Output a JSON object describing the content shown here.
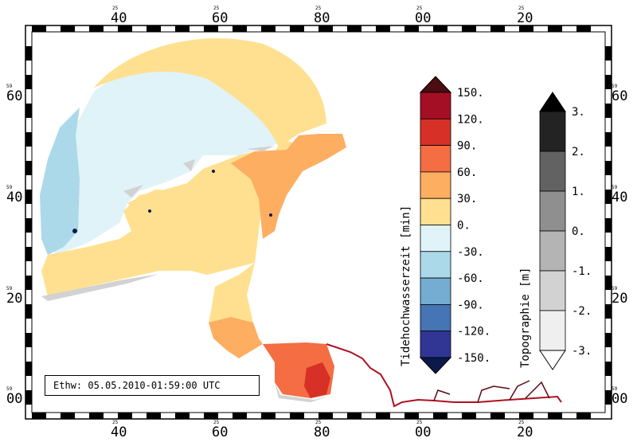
{
  "map": {
    "top_axis": [
      {
        "major": "40",
        "minor": "25"
      },
      {
        "major": "60",
        "minor": "25"
      },
      {
        "major": "80",
        "minor": "25"
      },
      {
        "major": "00",
        "minor": "25"
      },
      {
        "major": "20",
        "minor": "25"
      }
    ],
    "bottom_axis": [
      {
        "major": "40",
        "minor": "25"
      },
      {
        "major": "60",
        "minor": "25"
      },
      {
        "major": "80",
        "minor": "25"
      },
      {
        "major": "00",
        "minor": "25"
      },
      {
        "major": "20",
        "minor": "25"
      }
    ],
    "left_axis": [
      {
        "major": "60",
        "minor": "59"
      },
      {
        "major": "40",
        "minor": "59"
      },
      {
        "major": "20",
        "minor": "59"
      },
      {
        "major": "00",
        "minor": "59"
      }
    ],
    "right_axis": [
      {
        "major": "60",
        "minor": "59"
      },
      {
        "major": "40",
        "minor": "59"
      },
      {
        "major": "20",
        "minor": "59"
      },
      {
        "major": "00",
        "minor": "59"
      }
    ],
    "timestamp": "Ethw: 05.05.2010-01:59:00 UTC"
  },
  "tide_colorbar": {
    "title": "Tidehochwasserzeit [min]",
    "labels": [
      "150.",
      "120.",
      "90.",
      "60.",
      "30.",
      "0.",
      "-30.",
      "-60.",
      "-90.",
      "-120.",
      "-150."
    ],
    "colors_top_to_bottom": [
      "#4a0d12",
      "#a50f26",
      "#d73027",
      "#f46d43",
      "#fdae61",
      "#fee090",
      "#e0f3f8",
      "#abd9e9",
      "#74add1",
      "#4575b4",
      "#313695",
      "#0b1a4a"
    ]
  },
  "topo_colorbar": {
    "title": "Topographie [m]",
    "labels": [
      "3.",
      "2.",
      "1.",
      "0.",
      "-1.",
      "-2.",
      "-3."
    ],
    "colors_top_to_bottom": [
      "#000000",
      "#232323",
      "#626262",
      "#8f8f8f",
      "#b4b4b4",
      "#d2d2d2",
      "#efefef",
      "#ffffff"
    ]
  },
  "region_colors": {
    "light_blue": "#e0f3f8",
    "mid_blue": "#abd9e9",
    "yellow": "#fee090",
    "orange": "#fdae61",
    "red_orange": "#f46d43",
    "red": "#d73027",
    "river": "#b01020"
  }
}
